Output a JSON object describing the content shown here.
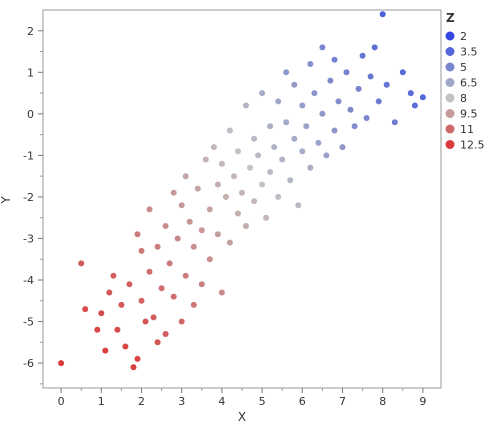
{
  "chart_data": {
    "type": "scatter",
    "xlabel": "X",
    "ylabel": "Y",
    "xlim": [
      -0.45,
      9.45
    ],
    "ylim": [
      -6.6,
      2.5
    ],
    "xticks": [
      "0",
      "1",
      "2",
      "3",
      "4",
      "5",
      "6",
      "7",
      "8",
      "9"
    ],
    "yticks": [
      "2",
      "1",
      "0",
      "-1",
      "-2",
      "-3",
      "-4",
      "-5",
      "-6"
    ],
    "xtick_values": [
      0,
      1,
      2,
      3,
      4,
      5,
      6,
      7,
      8,
      9
    ],
    "ytick_values": [
      2,
      1,
      0,
      -1,
      -2,
      -3,
      -4,
      -5,
      -6
    ],
    "legend": {
      "title": "Z",
      "placement": "right",
      "entries": [
        {
          "label": "2",
          "color": "#3347e0"
        },
        {
          "label": "3.5",
          "color": "#5566d8"
        },
        {
          "label": "5",
          "color": "#7a86cd"
        },
        {
          "label": "6.5",
          "color": "#a0a6c8"
        },
        {
          "label": "8",
          "color": "#c2c2c2"
        },
        {
          "label": "9.5",
          "color": "#c69a9a"
        },
        {
          "label": "11",
          "color": "#d06a6a"
        },
        {
          "label": "12.5",
          "color": "#d93b3b"
        }
      ]
    },
    "series": [
      {
        "values": [
          {
            "x": 0.0,
            "y": -6.0,
            "z": 12.5
          },
          {
            "x": 0.5,
            "y": -3.6,
            "z": 11.5
          },
          {
            "x": 0.6,
            "y": -4.7,
            "z": 12.0
          },
          {
            "x": 0.9,
            "y": -5.2,
            "z": 12.2
          },
          {
            "x": 1.0,
            "y": -4.8,
            "z": 12.0
          },
          {
            "x": 1.1,
            "y": -5.7,
            "z": 12.4
          },
          {
            "x": 1.2,
            "y": -4.3,
            "z": 11.6
          },
          {
            "x": 1.3,
            "y": -3.9,
            "z": 11.3
          },
          {
            "x": 1.4,
            "y": -5.2,
            "z": 12.0
          },
          {
            "x": 1.5,
            "y": -4.6,
            "z": 11.6
          },
          {
            "x": 1.6,
            "y": -5.6,
            "z": 12.2
          },
          {
            "x": 1.7,
            "y": -4.1,
            "z": 11.3
          },
          {
            "x": 1.8,
            "y": -6.1,
            "z": 12.4
          },
          {
            "x": 1.9,
            "y": -5.9,
            "z": 12.2
          },
          {
            "x": 1.9,
            "y": -2.9,
            "z": 10.4
          },
          {
            "x": 2.0,
            "y": -4.5,
            "z": 11.3
          },
          {
            "x": 2.0,
            "y": -3.3,
            "z": 10.6
          },
          {
            "x": 2.1,
            "y": -5.0,
            "z": 11.6
          },
          {
            "x": 2.2,
            "y": -2.3,
            "z": 10.0
          },
          {
            "x": 2.2,
            "y": -3.8,
            "z": 10.9
          },
          {
            "x": 2.3,
            "y": -4.9,
            "z": 11.4
          },
          {
            "x": 2.4,
            "y": -5.5,
            "z": 11.7
          },
          {
            "x": 2.4,
            "y": -3.2,
            "z": 10.4
          },
          {
            "x": 2.5,
            "y": -4.2,
            "z": 10.9
          },
          {
            "x": 2.6,
            "y": -2.7,
            "z": 10.0
          },
          {
            "x": 2.6,
            "y": -5.3,
            "z": 11.4
          },
          {
            "x": 2.7,
            "y": -3.6,
            "z": 10.5
          },
          {
            "x": 2.8,
            "y": -1.9,
            "z": 9.5
          },
          {
            "x": 2.8,
            "y": -4.4,
            "z": 10.9
          },
          {
            "x": 2.9,
            "y": -3.0,
            "z": 10.1
          },
          {
            "x": 3.0,
            "y": -2.2,
            "z": 9.5
          },
          {
            "x": 3.0,
            "y": -5.0,
            "z": 11.0
          },
          {
            "x": 3.1,
            "y": -1.5,
            "z": 9.1
          },
          {
            "x": 3.1,
            "y": -3.9,
            "z": 10.4
          },
          {
            "x": 3.2,
            "y": -2.6,
            "z": 9.7
          },
          {
            "x": 3.3,
            "y": -4.6,
            "z": 10.7
          },
          {
            "x": 3.3,
            "y": -3.2,
            "z": 9.9
          },
          {
            "x": 3.4,
            "y": -1.8,
            "z": 9.1
          },
          {
            "x": 3.5,
            "y": -2.8,
            "z": 9.6
          },
          {
            "x": 3.5,
            "y": -4.1,
            "z": 10.3
          },
          {
            "x": 3.6,
            "y": -1.1,
            "z": 8.6
          },
          {
            "x": 3.7,
            "y": -2.3,
            "z": 9.2
          },
          {
            "x": 3.7,
            "y": -3.5,
            "z": 9.8
          },
          {
            "x": 3.8,
            "y": -0.8,
            "z": 8.3
          },
          {
            "x": 3.9,
            "y": -1.7,
            "z": 8.8
          },
          {
            "x": 3.9,
            "y": -2.9,
            "z": 9.4
          },
          {
            "x": 4.0,
            "y": -1.2,
            "z": 8.4
          },
          {
            "x": 4.0,
            "y": -4.3,
            "z": 10.0
          },
          {
            "x": 4.1,
            "y": -2.0,
            "z": 8.8
          },
          {
            "x": 4.2,
            "y": -0.4,
            "z": 7.8
          },
          {
            "x": 4.2,
            "y": -3.1,
            "z": 9.3
          },
          {
            "x": 4.3,
            "y": -1.5,
            "z": 8.4
          },
          {
            "x": 4.4,
            "y": -2.4,
            "z": 8.8
          },
          {
            "x": 4.4,
            "y": -0.9,
            "z": 8.0
          },
          {
            "x": 4.5,
            "y": -1.9,
            "z": 8.5
          },
          {
            "x": 4.6,
            "y": 0.2,
            "z": 7.2
          },
          {
            "x": 4.6,
            "y": -2.7,
            "z": 8.9
          },
          {
            "x": 4.7,
            "y": -1.3,
            "z": 8.0
          },
          {
            "x": 4.8,
            "y": -0.6,
            "z": 7.5
          },
          {
            "x": 4.8,
            "y": -2.1,
            "z": 8.4
          },
          {
            "x": 4.9,
            "y": -1.0,
            "z": 7.7
          },
          {
            "x": 5.0,
            "y": -1.7,
            "z": 8.0
          },
          {
            "x": 5.0,
            "y": 0.5,
            "z": 6.8
          },
          {
            "x": 5.1,
            "y": -2.5,
            "z": 8.4
          },
          {
            "x": 5.2,
            "y": -0.3,
            "z": 7.0
          },
          {
            "x": 5.2,
            "y": -1.4,
            "z": 7.6
          },
          {
            "x": 5.3,
            "y": -0.8,
            "z": 7.2
          },
          {
            "x": 5.4,
            "y": 0.3,
            "z": 6.5
          },
          {
            "x": 5.4,
            "y": -2.0,
            "z": 7.8
          },
          {
            "x": 5.5,
            "y": -1.1,
            "z": 7.2
          },
          {
            "x": 5.6,
            "y": -0.2,
            "z": 6.6
          },
          {
            "x": 5.6,
            "y": 1.0,
            "z": 5.9
          },
          {
            "x": 5.7,
            "y": -1.6,
            "z": 7.4
          },
          {
            "x": 5.8,
            "y": -0.6,
            "z": 6.7
          },
          {
            "x": 5.8,
            "y": 0.7,
            "z": 6.0
          },
          {
            "x": 5.9,
            "y": -2.2,
            "z": 7.6
          },
          {
            "x": 6.0,
            "y": -0.9,
            "z": 6.8
          },
          {
            "x": 6.0,
            "y": 0.2,
            "z": 6.1
          },
          {
            "x": 6.1,
            "y": -0.3,
            "z": 6.3
          },
          {
            "x": 6.2,
            "y": 1.2,
            "z": 5.4
          },
          {
            "x": 6.2,
            "y": -1.3,
            "z": 6.9
          },
          {
            "x": 6.3,
            "y": 0.5,
            "z": 5.7
          },
          {
            "x": 6.4,
            "y": -0.7,
            "z": 6.3
          },
          {
            "x": 6.5,
            "y": 1.6,
            "z": 4.9
          },
          {
            "x": 6.5,
            "y": 0.0,
            "z": 5.8
          },
          {
            "x": 6.6,
            "y": -1.0,
            "z": 6.3
          },
          {
            "x": 6.7,
            "y": 0.8,
            "z": 5.2
          },
          {
            "x": 6.8,
            "y": -0.4,
            "z": 5.8
          },
          {
            "x": 6.8,
            "y": 1.3,
            "z": 4.8
          },
          {
            "x": 6.9,
            "y": 0.3,
            "z": 5.3
          },
          {
            "x": 7.0,
            "y": -0.8,
            "z": 5.8
          },
          {
            "x": 7.1,
            "y": 1.0,
            "z": 4.8
          },
          {
            "x": 7.2,
            "y": 0.1,
            "z": 5.2
          },
          {
            "x": 7.3,
            "y": -0.3,
            "z": 5.3
          },
          {
            "x": 7.4,
            "y": 0.6,
            "z": 4.8
          },
          {
            "x": 7.5,
            "y": 1.4,
            "z": 4.2
          },
          {
            "x": 7.6,
            "y": -0.1,
            "z": 5.0
          },
          {
            "x": 7.7,
            "y": 0.9,
            "z": 4.3
          },
          {
            "x": 7.8,
            "y": 1.6,
            "z": 3.8
          },
          {
            "x": 7.9,
            "y": 0.3,
            "z": 4.5
          },
          {
            "x": 8.0,
            "y": 2.4,
            "z": 3.1
          },
          {
            "x": 8.1,
            "y": 0.7,
            "z": 4.0
          },
          {
            "x": 8.3,
            "y": -0.2,
            "z": 4.5
          },
          {
            "x": 8.5,
            "y": 1.0,
            "z": 3.6
          },
          {
            "x": 8.7,
            "y": 0.5,
            "z": 3.7
          },
          {
            "x": 8.8,
            "y": 0.2,
            "z": 3.8
          },
          {
            "x": 9.0,
            "y": 0.4,
            "z": 3.5
          }
        ]
      }
    ]
  }
}
